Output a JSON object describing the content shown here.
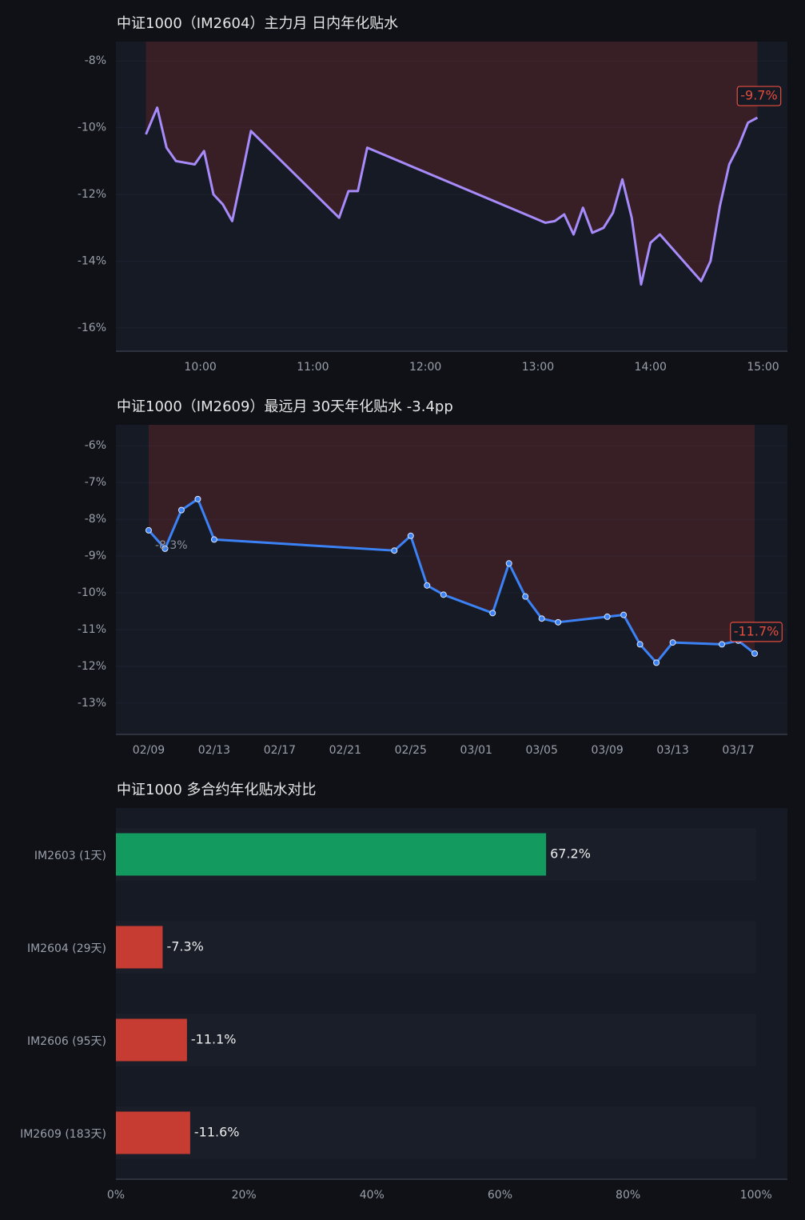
{
  "chart_data": [
    {
      "type": "line",
      "title": "中证1000（IM2604）主力月 日内年化贴水",
      "color": "#a78bfa",
      "area_color": "#c0392b",
      "grid": true,
      "markers": false,
      "x": [
        "09:31",
        "09:37",
        "09:42",
        "09:47",
        "09:57",
        "10:02",
        "10:07",
        "10:12",
        "10:17",
        "10:23",
        "10:27",
        "11:14",
        "11:19",
        "11:24",
        "11:29",
        "13:04",
        "13:09",
        "13:14",
        "13:19",
        "13:24",
        "13:29",
        "13:35",
        "13:40",
        "13:45",
        "13:50",
        "13:55",
        "14:00",
        "14:05",
        "14:27",
        "14:32",
        "14:37",
        "14:42",
        "14:47",
        "14:52",
        "14:57"
      ],
      "values": [
        -10.2,
        -9.4,
        -10.6,
        -11.0,
        -11.1,
        -10.7,
        -12.0,
        -12.3,
        -12.8,
        -11.2,
        -10.1,
        -12.7,
        -11.9,
        -11.9,
        -10.6,
        -12.85,
        -12.8,
        -12.6,
        -13.2,
        -12.4,
        -13.15,
        -13.0,
        -12.55,
        -11.55,
        -12.7,
        -14.7,
        -13.45,
        -13.2,
        -14.6,
        -14.0,
        -12.35,
        -11.1,
        -10.55,
        -9.85,
        -9.7
      ],
      "value_labels": [
        null,
        null,
        null,
        null,
        null,
        null,
        null,
        null,
        null,
        null,
        null,
        null,
        null,
        null,
        null,
        null,
        null,
        null,
        null,
        null,
        null,
        null,
        null,
        null,
        null,
        null,
        null,
        null,
        null,
        null,
        null,
        null,
        null,
        null,
        "-9.7%"
      ],
      "xlim": [
        "09:15",
        "15:13"
      ],
      "xticks": [
        "10:00",
        "11:00",
        "12:00",
        "13:00",
        "14:00",
        "15:00"
      ],
      "ylim": [
        -16.7,
        -7.42
      ],
      "yticks": [
        {
          "value": -16,
          "label": "-16%"
        },
        {
          "value": -14,
          "label": "-14%"
        },
        {
          "value": -12,
          "label": "-12%"
        },
        {
          "value": -10,
          "label": "-10%"
        },
        {
          "value": -8,
          "label": "-8%"
        }
      ]
    },
    {
      "type": "line",
      "title": "中证1000（IM2609）最远月 30天年化贴水   -3.4pp",
      "color": "#3b82f6",
      "area_color": "#c0392b",
      "grid": true,
      "markers": true,
      "x": [
        "02/09",
        "02/10",
        "02/11",
        "02/12",
        "02/13",
        "02/24",
        "02/25",
        "02/26",
        "02/27",
        "03/02",
        "03/03",
        "03/04",
        "03/05",
        "03/06",
        "03/09",
        "03/10",
        "03/11",
        "03/12",
        "03/13",
        "03/16",
        "03/17",
        "03/18"
      ],
      "values": [
        -8.3,
        -8.8,
        -7.75,
        -7.45,
        -8.55,
        -8.85,
        -8.45,
        -9.8,
        -10.05,
        -10.55,
        -9.2,
        -10.1,
        -10.7,
        -10.8,
        -10.65,
        -10.6,
        -11.4,
        -11.9,
        -11.35,
        -11.4,
        -11.3,
        -11.65
      ],
      "value_labels": [
        "-8.3%",
        null,
        null,
        null,
        null,
        null,
        null,
        null,
        null,
        null,
        null,
        null,
        null,
        null,
        null,
        null,
        null,
        null,
        null,
        null,
        null,
        "-11.7%"
      ],
      "xlim": [
        "02/07",
        "03/20"
      ],
      "xticks": [
        "02/09",
        "02/13",
        "02/17",
        "02/21",
        "02/25",
        "03/01",
        "03/05",
        "03/09",
        "03/13",
        "03/17"
      ],
      "ylim": [
        -13.85,
        -5.43
      ],
      "yticks": [
        {
          "value": -13,
          "label": "-13%"
        },
        {
          "value": -12,
          "label": "-12%"
        },
        {
          "value": -11,
          "label": "-11%"
        },
        {
          "value": -10,
          "label": "-10%"
        },
        {
          "value": -9,
          "label": "-9%"
        },
        {
          "value": -8,
          "label": "-8%"
        },
        {
          "value": -7,
          "label": "-7%"
        },
        {
          "value": -6,
          "label": "-6%"
        }
      ]
    },
    {
      "type": "hbar",
      "title": "中证1000 多合约年化贴水对比",
      "positive_color": "#139a5f",
      "negative_color": "#c63c33",
      "categories": [
        "IM2603 (1天)",
        "IM2604 (29天)",
        "IM2606 (95天)",
        "IM2609 (183天)"
      ],
      "values": [
        67.2,
        -7.3,
        -11.1,
        -11.6
      ],
      "value_labels": [
        "67.2%",
        "-7.3%",
        "-11.1%",
        "-11.6%"
      ],
      "xlim": [
        0,
        104.9
      ],
      "xticks": [
        {
          "value": 0,
          "label": "0%"
        },
        {
          "value": 20,
          "label": "20%"
        },
        {
          "value": 40,
          "label": "40%"
        },
        {
          "value": 60,
          "label": "60%"
        },
        {
          "value": 80,
          "label": "80%"
        },
        {
          "value": 100,
          "label": "100%"
        }
      ]
    }
  ]
}
